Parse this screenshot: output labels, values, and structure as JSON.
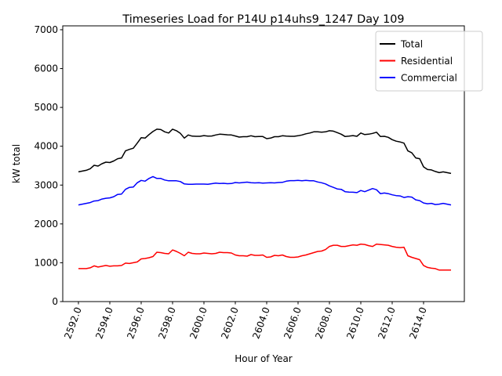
{
  "chart_data": {
    "type": "line",
    "title": "Timeseries Load for P14U p14uhs9_1247  Day 109",
    "xlabel": "Hour of Year",
    "ylabel": "kW total",
    "xlim": [
      2591.0,
      2616.6
    ],
    "ylim": [
      0,
      7100
    ],
    "x_ticks": [
      2592.0,
      2594.0,
      2596.0,
      2598.0,
      2600.0,
      2602.0,
      2604.0,
      2606.0,
      2608.0,
      2610.0,
      2612.0,
      2614.0
    ],
    "x_tick_labels": [
      "2592.0",
      "2594.0",
      "2596.0",
      "2598.0",
      "2600.0",
      "2602.0",
      "2604.0",
      "2606.0",
      "2608.0",
      "2610.0",
      "2612.0",
      "2614.0"
    ],
    "y_ticks": [
      0,
      1000,
      2000,
      3000,
      4000,
      5000,
      6000,
      7000
    ],
    "y_tick_labels": [
      "0",
      "1000",
      "2000",
      "3000",
      "4000",
      "5000",
      "6000",
      "7000"
    ],
    "grid": false,
    "legend_position": "upper right",
    "x_start": 2592.0,
    "x_step": 0.25,
    "series": [
      {
        "name": "Total",
        "color": "#000000",
        "values": [
          3340,
          3360,
          3380,
          3420,
          3510,
          3490,
          3550,
          3590,
          3580,
          3620,
          3680,
          3700,
          3880,
          3920,
          3950,
          4080,
          4220,
          4210,
          4300,
          4380,
          4440,
          4430,
          4370,
          4340,
          4440,
          4400,
          4330,
          4210,
          4290,
          4260,
          4255,
          4255,
          4275,
          4260,
          4265,
          4290,
          4310,
          4305,
          4295,
          4290,
          4265,
          4235,
          4245,
          4245,
          4270,
          4245,
          4250,
          4250,
          4195,
          4210,
          4245,
          4245,
          4270,
          4260,
          4255,
          4255,
          4270,
          4290,
          4320,
          4340,
          4370,
          4370,
          4360,
          4370,
          4400,
          4390,
          4350,
          4310,
          4250,
          4260,
          4275,
          4255,
          4340,
          4300,
          4310,
          4330,
          4360,
          4250,
          4255,
          4230,
          4170,
          4130,
          4110,
          4080,
          3880,
          3830,
          3700,
          3680,
          3470,
          3400,
          3390,
          3350,
          3320,
          3340,
          3320,
          3300
        ]
      },
      {
        "name": "Residential",
        "color": "#ff0000",
        "values": [
          850,
          850,
          850,
          870,
          920,
          890,
          910,
          930,
          910,
          920,
          920,
          930,
          990,
          980,
          1000,
          1020,
          1100,
          1110,
          1130,
          1160,
          1270,
          1260,
          1240,
          1230,
          1330,
          1290,
          1240,
          1180,
          1270,
          1240,
          1230,
          1230,
          1250,
          1240,
          1230,
          1240,
          1270,
          1260,
          1260,
          1250,
          1200,
          1180,
          1180,
          1170,
          1210,
          1190,
          1190,
          1200,
          1140,
          1150,
          1190,
          1180,
          1200,
          1160,
          1140,
          1140,
          1150,
          1180,
          1200,
          1230,
          1260,
          1290,
          1300,
          1340,
          1420,
          1450,
          1450,
          1420,
          1420,
          1440,
          1460,
          1450,
          1480,
          1470,
          1440,
          1420,
          1480,
          1470,
          1460,
          1450,
          1420,
          1400,
          1390,
          1400,
          1180,
          1140,
          1110,
          1080,
          930,
          880,
          860,
          850,
          810,
          810,
          810,
          810
        ]
      },
      {
        "name": "Commercial",
        "color": "#0000ff",
        "values": [
          2490,
          2510,
          2530,
          2550,
          2590,
          2600,
          2640,
          2660,
          2670,
          2700,
          2760,
          2770,
          2890,
          2940,
          2950,
          3060,
          3120,
          3100,
          3170,
          3220,
          3170,
          3170,
          3130,
          3110,
          3110,
          3110,
          3090,
          3030,
          3020,
          3020,
          3025,
          3025,
          3025,
          3020,
          3035,
          3050,
          3040,
          3045,
          3035,
          3040,
          3065,
          3055,
          3065,
          3075,
          3060,
          3055,
          3060,
          3050,
          3055,
          3060,
          3055,
          3065,
          3070,
          3100,
          3115,
          3115,
          3120,
          3110,
          3120,
          3110,
          3110,
          3080,
          3060,
          3030,
          2980,
          2940,
          2900,
          2890,
          2830,
          2820,
          2815,
          2805,
          2860,
          2830,
          2870,
          2910,
          2880,
          2780,
          2795,
          2780,
          2750,
          2730,
          2720,
          2680,
          2700,
          2690,
          2620,
          2600,
          2540,
          2520,
          2530,
          2500,
          2510,
          2530,
          2510,
          2490
        ]
      }
    ]
  }
}
